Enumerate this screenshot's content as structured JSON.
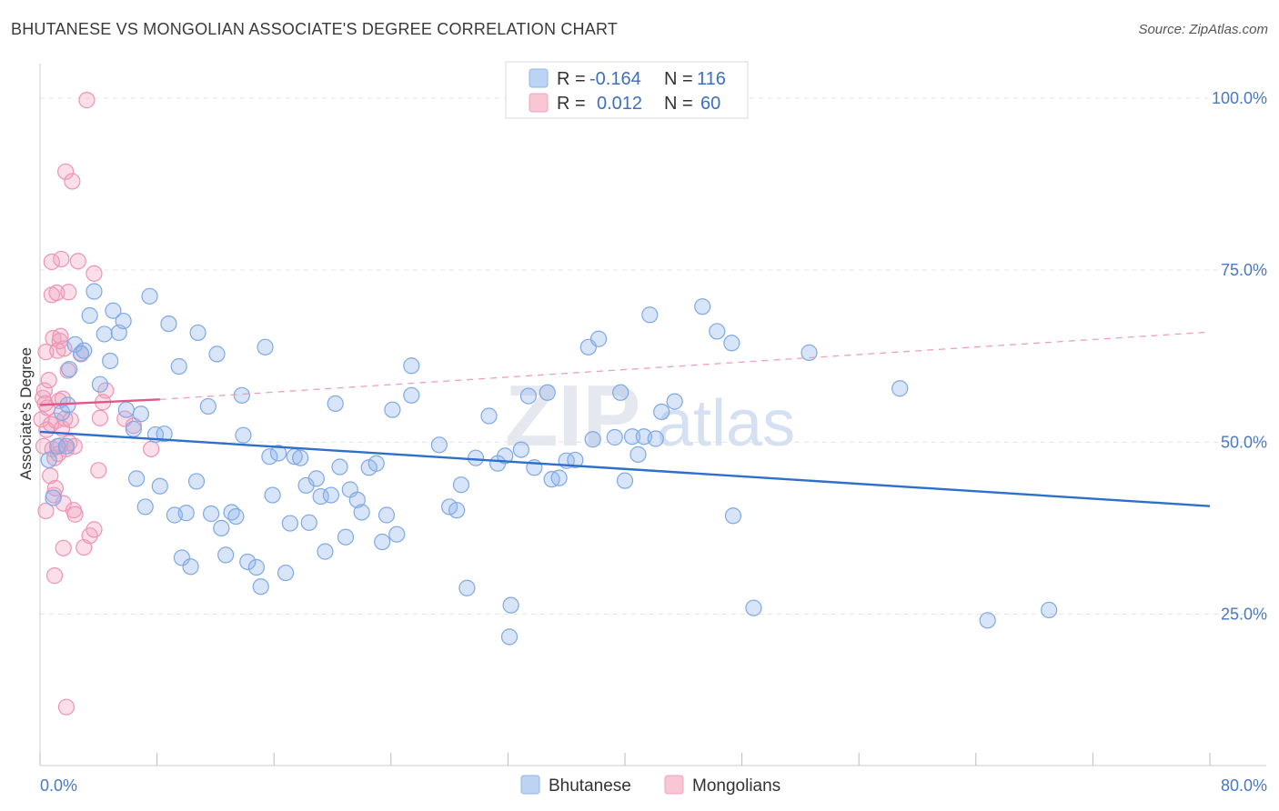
{
  "title": "BHUTANESE VS MONGOLIAN ASSOCIATE'S DEGREE CORRELATION CHART",
  "source": "Source: ZipAtlas.com",
  "watermark": {
    "part1": "ZIP",
    "part2": "atlas"
  },
  "legend": {
    "rows": [
      {
        "r_label": "R =",
        "r_value": "-0.164",
        "n_label": "N =",
        "n_value": "116",
        "color": "#8fb4ea"
      },
      {
        "r_label": "R =",
        "r_value": "0.012",
        "n_label": "N =",
        "n_value": "60",
        "color": "#f2a2bd"
      }
    ]
  },
  "bottom_legend": [
    {
      "label": "Bhutanese",
      "color": "#8fb4ea"
    },
    {
      "label": "Mongolians",
      "color": "#f2a2bd"
    }
  ],
  "chart_data": {
    "type": "scatter",
    "title": "BHUTANESE VS MONGOLIAN ASSOCIATE'S DEGREE CORRELATION CHART",
    "xlabel": "",
    "ylabel": "Associate's Degree",
    "xlim": [
      0,
      80
    ],
    "ylim": [
      3,
      105
    ],
    "x_tick_labels": [
      "0.0%",
      "80.0%"
    ],
    "y_ticks": [
      25,
      50,
      75,
      100
    ],
    "y_tick_labels": [
      "25.0%",
      "50.0%",
      "75.0%",
      "100.0%"
    ],
    "grid": true,
    "series": [
      {
        "name": "Bhutanese",
        "color": "#8fb4ea",
        "trend": {
          "x": [
            0,
            80
          ],
          "y": [
            51.5,
            40.7
          ],
          "style": "solid",
          "color": "#2f6fcc"
        },
        "points": [
          [
            0.6,
            47.4
          ],
          [
            0.9,
            41.9
          ],
          [
            1.2,
            49.4
          ],
          [
            1.5,
            54.3
          ],
          [
            1.8,
            49.4
          ],
          [
            1.9,
            55.4
          ],
          [
            2.0,
            60.6
          ],
          [
            2.4,
            64.2
          ],
          [
            2.8,
            62.9
          ],
          [
            3.0,
            63.3
          ],
          [
            3.4,
            68.4
          ],
          [
            3.7,
            71.9
          ],
          [
            4.1,
            58.4
          ],
          [
            4.4,
            65.7
          ],
          [
            4.8,
            61.8
          ],
          [
            5.0,
            69.1
          ],
          [
            5.4,
            65.9
          ],
          [
            5.7,
            67.6
          ],
          [
            5.9,
            54.7
          ],
          [
            6.4,
            51.9
          ],
          [
            6.6,
            44.7
          ],
          [
            6.9,
            54.1
          ],
          [
            7.2,
            40.6
          ],
          [
            7.5,
            71.2
          ],
          [
            7.9,
            51.1
          ],
          [
            8.2,
            43.6
          ],
          [
            8.5,
            51.2
          ],
          [
            8.8,
            67.2
          ],
          [
            9.2,
            39.4
          ],
          [
            9.5,
            61.0
          ],
          [
            9.7,
            33.2
          ],
          [
            10.0,
            39.7
          ],
          [
            10.3,
            31.9
          ],
          [
            10.7,
            44.3
          ],
          [
            10.8,
            65.9
          ],
          [
            11.5,
            55.2
          ],
          [
            11.7,
            39.6
          ],
          [
            12.1,
            62.8
          ],
          [
            12.4,
            37.5
          ],
          [
            12.7,
            33.6
          ],
          [
            13.1,
            39.8
          ],
          [
            13.4,
            39.2
          ],
          [
            13.8,
            56.8
          ],
          [
            13.9,
            51.0
          ],
          [
            14.2,
            32.6
          ],
          [
            14.8,
            31.8
          ],
          [
            15.1,
            29.0
          ],
          [
            15.4,
            63.8
          ],
          [
            15.7,
            47.9
          ],
          [
            15.9,
            42.3
          ],
          [
            16.3,
            48.4
          ],
          [
            16.8,
            31.0
          ],
          [
            17.1,
            38.2
          ],
          [
            17.4,
            47.9
          ],
          [
            17.8,
            47.7
          ],
          [
            18.2,
            43.7
          ],
          [
            18.4,
            38.3
          ],
          [
            18.9,
            44.7
          ],
          [
            19.2,
            42.1
          ],
          [
            19.5,
            34.1
          ],
          [
            19.9,
            42.3
          ],
          [
            20.2,
            55.6
          ],
          [
            20.5,
            46.4
          ],
          [
            20.9,
            36.2
          ],
          [
            21.2,
            43.1
          ],
          [
            21.7,
            41.6
          ],
          [
            22.0,
            39.8
          ],
          [
            22.5,
            46.3
          ],
          [
            23.0,
            46.9
          ],
          [
            23.4,
            35.5
          ],
          [
            23.7,
            39.4
          ],
          [
            24.1,
            54.7
          ],
          [
            24.4,
            36.6
          ],
          [
            25.4,
            61.1
          ],
          [
            25.4,
            56.8
          ],
          [
            27.3,
            49.6
          ],
          [
            28.0,
            40.6
          ],
          [
            28.5,
            40.1
          ],
          [
            28.8,
            43.8
          ],
          [
            29.2,
            28.8
          ],
          [
            29.8,
            47.7
          ],
          [
            30.7,
            53.8
          ],
          [
            31.3,
            46.9
          ],
          [
            31.8,
            48.0
          ],
          [
            32.2,
            26.3
          ],
          [
            32.1,
            21.7
          ],
          [
            32.9,
            48.9
          ],
          [
            33.4,
            56.7
          ],
          [
            33.8,
            46.3
          ],
          [
            34.7,
            57.2
          ],
          [
            35.0,
            44.6
          ],
          [
            35.5,
            44.8
          ],
          [
            36.0,
            47.3
          ],
          [
            36.6,
            47.4
          ],
          [
            37.5,
            63.8
          ],
          [
            37.8,
            50.4
          ],
          [
            38.2,
            65.0
          ],
          [
            39.3,
            50.7
          ],
          [
            39.7,
            57.2
          ],
          [
            40.0,
            44.4
          ],
          [
            40.5,
            50.8
          ],
          [
            40.9,
            48.2
          ],
          [
            41.3,
            50.8
          ],
          [
            41.7,
            68.5
          ],
          [
            42.1,
            50.5
          ],
          [
            42.5,
            54.4
          ],
          [
            43.4,
            55.9
          ],
          [
            45.3,
            69.7
          ],
          [
            46.3,
            66.1
          ],
          [
            47.4,
            39.3
          ],
          [
            47.3,
            64.4
          ],
          [
            48.8,
            25.9
          ],
          [
            52.6,
            63.0
          ],
          [
            58.8,
            57.8
          ],
          [
            64.8,
            24.1
          ],
          [
            69.0,
            25.6
          ]
        ]
      },
      {
        "name": "Mongolians",
        "color": "#f2a2bd",
        "trend": {
          "x": [
            0,
            8.2
          ],
          "y": [
            55.4,
            56.2
          ],
          "style": "solid",
          "color": "#e0578a",
          "extension": {
            "x": [
              8.2,
              80
            ],
            "y": [
              56.2,
              66.0
            ],
            "style": "dashed"
          }
        },
        "points": [
          [
            0.1,
            53.3
          ],
          [
            0.2,
            56.4
          ],
          [
            0.25,
            49.4
          ],
          [
            0.3,
            57.5
          ],
          [
            0.35,
            55.6
          ],
          [
            0.4,
            40.0
          ],
          [
            0.4,
            63.1
          ],
          [
            0.45,
            51.8
          ],
          [
            0.5,
            55.0
          ],
          [
            0.6,
            59.0
          ],
          [
            0.7,
            45.1
          ],
          [
            0.75,
            52.6
          ],
          [
            0.8,
            71.4
          ],
          [
            0.8,
            76.2
          ],
          [
            0.85,
            49.0
          ],
          [
            0.9,
            65.1
          ],
          [
            0.95,
            42.3
          ],
          [
            1.0,
            47.7
          ],
          [
            1.0,
            30.6
          ],
          [
            1.05,
            43.3
          ],
          [
            1.1,
            53.1
          ],
          [
            1.15,
            71.7
          ],
          [
            1.2,
            63.3
          ],
          [
            1.25,
            48.3
          ],
          [
            1.3,
            56.0
          ],
          [
            1.35,
            64.7
          ],
          [
            1.4,
            65.4
          ],
          [
            1.4,
            49.5
          ],
          [
            1.45,
            76.6
          ],
          [
            1.5,
            52.0
          ],
          [
            1.55,
            56.3
          ],
          [
            1.6,
            41.1
          ],
          [
            1.6,
            34.6
          ],
          [
            1.65,
            63.6
          ],
          [
            1.7,
            53.4
          ],
          [
            1.75,
            89.3
          ],
          [
            1.8,
            49.0
          ],
          [
            1.8,
            11.5
          ],
          [
            1.9,
            60.4
          ],
          [
            1.95,
            71.8
          ],
          [
            2.0,
            49.9
          ],
          [
            2.1,
            53.2
          ],
          [
            2.2,
            87.9
          ],
          [
            2.3,
            40.1
          ],
          [
            2.35,
            49.4
          ],
          [
            2.4,
            39.5
          ],
          [
            2.6,
            76.3
          ],
          [
            2.8,
            62.8
          ],
          [
            3.0,
            34.7
          ],
          [
            3.2,
            99.7
          ],
          [
            3.4,
            36.4
          ],
          [
            3.7,
            74.5
          ],
          [
            3.7,
            37.3
          ],
          [
            4.0,
            45.9
          ],
          [
            4.5,
            57.5
          ],
          [
            4.3,
            55.8
          ],
          [
            4.1,
            53.5
          ],
          [
            5.8,
            53.4
          ],
          [
            6.4,
            52.4
          ],
          [
            7.6,
            49.0
          ]
        ]
      }
    ]
  }
}
